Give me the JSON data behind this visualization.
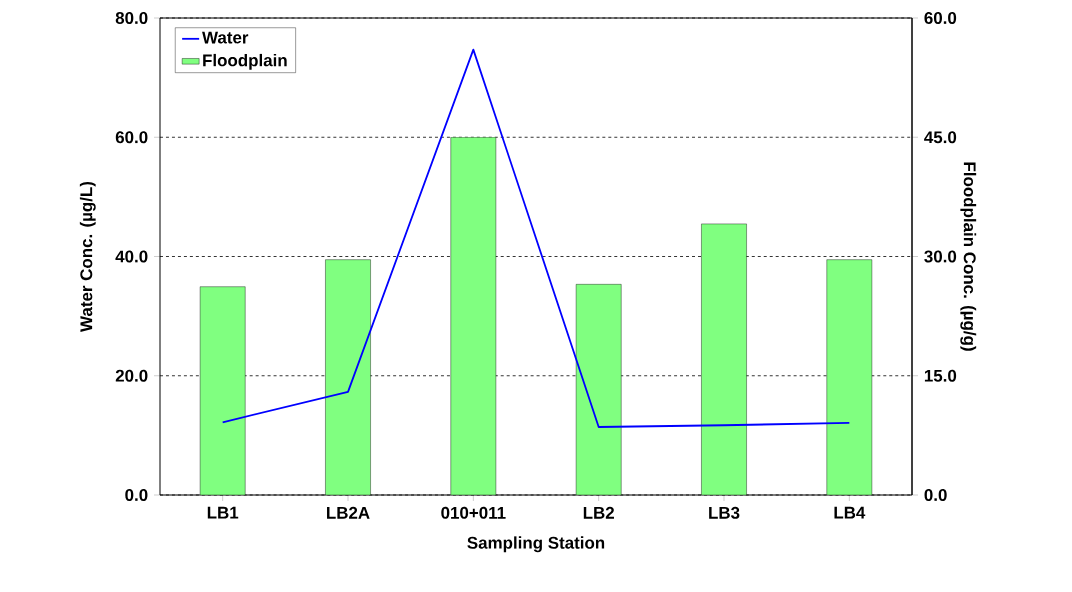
{
  "chart_data": {
    "type": "bar",
    "xlabel": "Sampling Station",
    "ylabel": "Water Conc. (µg/L)",
    "y2label": "Floodplain Conc. (µg/g)",
    "categories": [
      "LB1",
      "LB2A",
      "010+011",
      "LB2",
      "LB3",
      "LB4"
    ],
    "series": [
      {
        "name": "Water",
        "type": "line",
        "color": "#0000ff",
        "values": [
          12.2,
          17.3,
          74.7,
          11.4,
          11.7,
          12.1
        ]
      },
      {
        "name": "Floodplain",
        "axis": "y2",
        "color": "#80ff80",
        "values": [
          26.2,
          29.6,
          45.0,
          26.5,
          34.1,
          29.6
        ]
      }
    ],
    "ylim": [
      0,
      80
    ],
    "yticks": [
      {
        "value": 0,
        "label": "0.0"
      },
      {
        "value": 20,
        "label": "20.0"
      },
      {
        "value": 40,
        "label": "40.0"
      },
      {
        "value": 60,
        "label": "60.0"
      },
      {
        "value": 80,
        "label": "80.0"
      }
    ],
    "y2lim": [
      0,
      60
    ],
    "y2ticks": [
      {
        "value": 0,
        "label": "0.0"
      },
      {
        "value": 15,
        "label": "15.0"
      },
      {
        "value": 30,
        "label": "30.0"
      },
      {
        "value": 45,
        "label": "45.0"
      },
      {
        "value": 60,
        "label": "60.0"
      }
    ],
    "grid": "y",
    "legend": "top left",
    "marker": "none"
  }
}
